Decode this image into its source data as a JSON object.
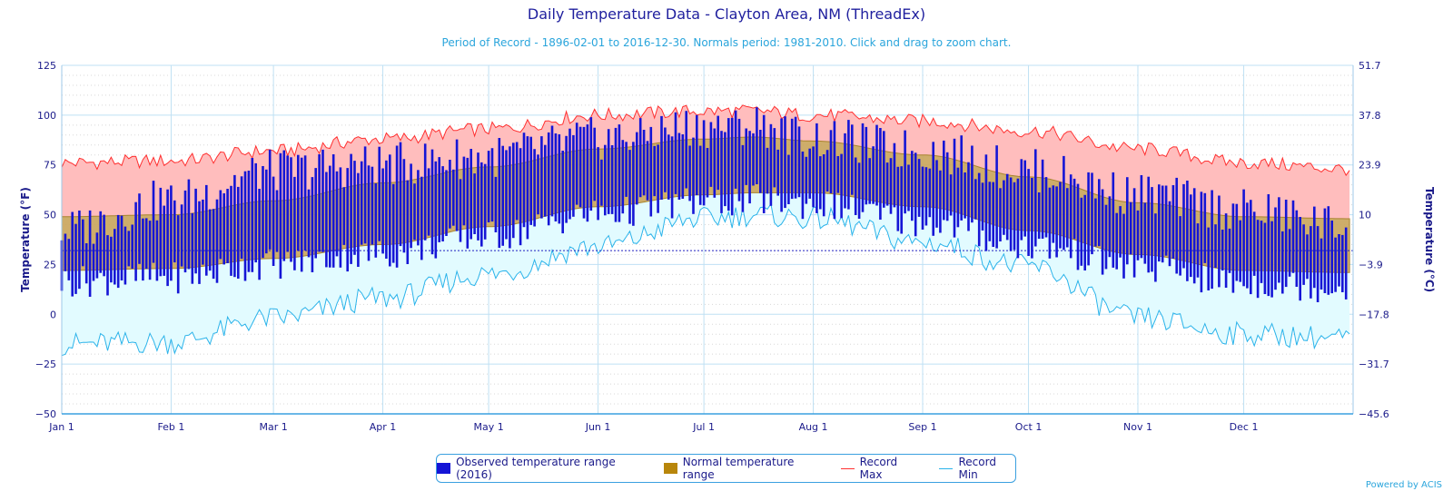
{
  "title": "Daily Temperature Data - Clayton Area, NM (ThreadEx)",
  "subtitle": "Period of Record - 1896-02-01 to 2016-12-30. Normals period: 1981-2010. Click and drag to zoom chart.",
  "credit": "Powered by ACIS",
  "colors": {
    "observed": "#1515d6",
    "normal_fill": "#c9a45a",
    "normal_edge": "#a8842e",
    "record_max_line": "#ff3030",
    "record_max_fill": "#ffbdbd",
    "record_min_line": "#2ab3ea",
    "record_min_fill": "#e2fbff",
    "axis_text": "#1a1a8a",
    "grid": "#bfe0f4",
    "freeze_line": "#2020c0"
  },
  "chart_data": {
    "type": "line",
    "xlabel": "",
    "ylabel": "Temperature (°F)",
    "ylabel_right": "Temperature (°C)",
    "ylim": [
      -50,
      125
    ],
    "y_ticks": [
      "125",
      "100",
      "75",
      "50",
      "25",
      "0",
      "−25",
      "−50"
    ],
    "y_ticks_right": [
      "51.7",
      "37.8",
      "23.9",
      "10",
      "−3.9",
      "−17.8",
      "−31.7",
      "−45.6"
    ],
    "x_tick_labels": [
      "Jan 1",
      "Feb 1",
      "Mar 1",
      "Apr 1",
      "May 1",
      "Jun 1",
      "Jul 1",
      "Aug 1",
      "Sep 1",
      "Oct 1",
      "Nov 1",
      "Dec 1"
    ],
    "x_tick_days": [
      0,
      31,
      60,
      91,
      121,
      152,
      182,
      213,
      244,
      274,
      305,
      335
    ],
    "days_in_year": 366,
    "freeze_line_f": 32,
    "grid": true,
    "legend_placement": "bottom-center",
    "anchor_days": [
      0,
      31,
      60,
      91,
      121,
      152,
      182,
      196,
      213,
      244,
      274,
      305,
      335,
      365
    ],
    "series": [
      {
        "name": "Record Max",
        "values": [
          76,
          77,
          82,
          88,
          93,
          100,
          102,
          102,
          100,
          97,
          92,
          83,
          76,
          73
        ]
      },
      {
        "name": "Record Min",
        "values": [
          -15,
          -14,
          -2,
          8,
          20,
          34,
          48,
          50,
          48,
          36,
          24,
          -2,
          -10,
          -12
        ]
      },
      {
        "name": "Normal Max",
        "values": [
          49,
          50,
          57,
          66,
          74,
          83,
          88,
          89,
          87,
          80,
          69,
          56,
          49,
          48
        ]
      },
      {
        "name": "Normal Min",
        "values": [
          22,
          23,
          28,
          35,
          44,
          54,
          60,
          61,
          61,
          54,
          42,
          30,
          22,
          21
        ]
      },
      {
        "name": "Observed temperature range (2016)",
        "note_high": "daily highs",
        "values_high": [
          40,
          55,
          70,
          73,
          77,
          86,
          92,
          93,
          86,
          80,
          70,
          58,
          50,
          42
        ],
        "values_low": [
          18,
          20,
          27,
          32,
          41,
          52,
          58,
          59,
          57,
          48,
          36,
          25,
          17,
          15
        ]
      }
    ]
  },
  "legend": {
    "observed_label": "Observed temperature range (2016)",
    "normal_label": "Normal temperature range",
    "record_max_label": "Record Max",
    "record_min_label": "Record Min"
  }
}
